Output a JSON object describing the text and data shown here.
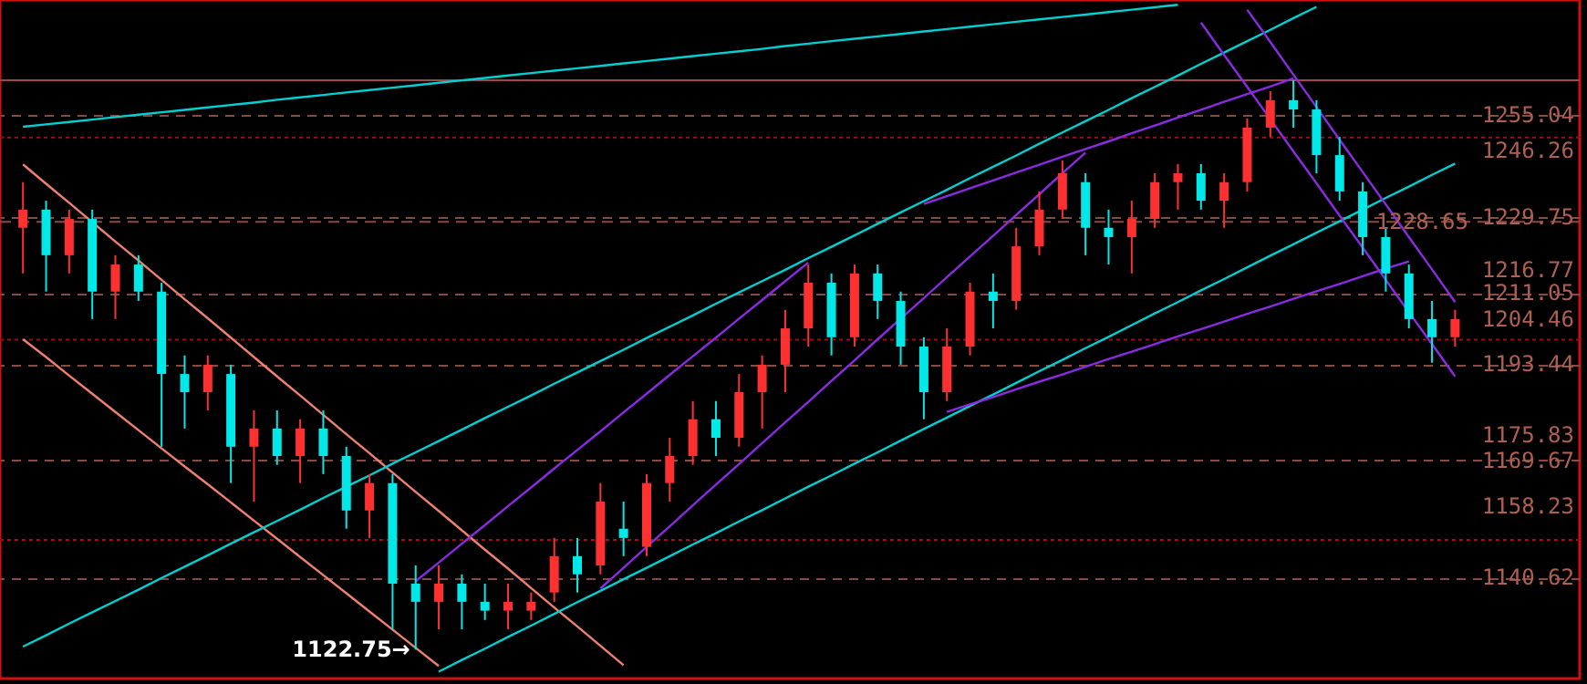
{
  "chart_data": {
    "type": "candlestick",
    "categories": [
      null,
      null,
      null,
      null,
      null,
      null,
      null,
      null,
      null,
      null,
      null,
      null,
      null,
      null,
      null,
      null,
      null,
      null,
      null,
      null,
      null,
      null,
      null,
      null,
      null,
      null,
      null,
      null,
      null,
      null,
      null,
      null,
      null,
      null,
      null,
      null,
      null,
      null,
      null,
      null,
      null,
      null,
      null,
      null,
      null,
      null,
      null,
      null,
      null,
      null,
      null,
      null,
      null,
      null,
      null,
      null,
      null,
      null,
      null,
      null,
      null,
      null,
      null
    ],
    "ohlc": [
      [
        1227.2,
        1238.5,
        1215.9,
        1231.7
      ],
      [
        1231.7,
        1233.9,
        1211.4,
        1220.4
      ],
      [
        1220.4,
        1231.7,
        1215.9,
        1229.4
      ],
      [
        1229.4,
        1231.7,
        1204.6,
        1211.4
      ],
      [
        1211.4,
        1220.4,
        1204.6,
        1218.1
      ],
      [
        1218.1,
        1220.4,
        1209.1,
        1211.4
      ],
      [
        1211.4,
        1213.6,
        1173.0,
        1191.0
      ],
      [
        1191.0,
        1195.6,
        1177.5,
        1186.5
      ],
      [
        1186.5,
        1195.6,
        1182.0,
        1193.3
      ],
      [
        1191.0,
        1193.3,
        1164.0,
        1173.0
      ],
      [
        1173.0,
        1182.0,
        1159.4,
        1177.5
      ],
      [
        1177.5,
        1182.0,
        1168.5,
        1170.7
      ],
      [
        1170.7,
        1179.8,
        1164.0,
        1177.5
      ],
      [
        1177.5,
        1182.0,
        1166.2,
        1170.7
      ],
      [
        1170.7,
        1173.0,
        1152.7,
        1157.2
      ],
      [
        1157.2,
        1166.2,
        1150.4,
        1164.0
      ],
      [
        1164.0,
        1166.2,
        1127.8,
        1139.1
      ],
      [
        1139.1,
        1143.6,
        1122.75,
        1134.6
      ],
      [
        1134.6,
        1143.6,
        1127.8,
        1139.1
      ],
      [
        1139.1,
        1141.4,
        1127.8,
        1134.6
      ],
      [
        1134.6,
        1139.1,
        1130.1,
        1132.4
      ],
      [
        1132.4,
        1139.1,
        1127.8,
        1134.6
      ],
      [
        1132.4,
        1136.9,
        1130.1,
        1134.6
      ],
      [
        1136.9,
        1150.4,
        1134.6,
        1145.9
      ],
      [
        1145.9,
        1150.4,
        1136.9,
        1141.4
      ],
      [
        1143.6,
        1164.0,
        1141.4,
        1159.4
      ],
      [
        1152.7,
        1159.4,
        1145.9,
        1150.4
      ],
      [
        1148.2,
        1166.2,
        1145.9,
        1164.0
      ],
      [
        1164.0,
        1175.2,
        1159.4,
        1170.7
      ],
      [
        1170.7,
        1184.3,
        1168.5,
        1179.8
      ],
      [
        1179.8,
        1184.3,
        1170.7,
        1175.2
      ],
      [
        1175.2,
        1191.0,
        1173.0,
        1186.5
      ],
      [
        1186.5,
        1195.6,
        1177.5,
        1193.3
      ],
      [
        1193.3,
        1206.9,
        1186.5,
        1202.3
      ],
      [
        1202.3,
        1218.1,
        1197.8,
        1213.6
      ],
      [
        1213.6,
        1215.9,
        1195.6,
        1200.1
      ],
      [
        1200.1,
        1218.1,
        1197.8,
        1215.9
      ],
      [
        1215.9,
        1218.1,
        1204.6,
        1209.1
      ],
      [
        1209.1,
        1211.4,
        1193.3,
        1197.8
      ],
      [
        1197.8,
        1200.1,
        1179.8,
        1186.5
      ],
      [
        1186.5,
        1202.3,
        1184.3,
        1197.8
      ],
      [
        1197.8,
        1213.6,
        1195.6,
        1211.4
      ],
      [
        1211.4,
        1215.9,
        1202.3,
        1209.1
      ],
      [
        1209.1,
        1227.2,
        1206.9,
        1222.6
      ],
      [
        1222.6,
        1236.2,
        1220.4,
        1231.7
      ],
      [
        1231.7,
        1243.9,
        1229.4,
        1240.7
      ],
      [
        1238.5,
        1240.7,
        1220.4,
        1227.2
      ],
      [
        1227.2,
        1231.7,
        1218.1,
        1224.9
      ],
      [
        1224.9,
        1233.9,
        1215.9,
        1229.4
      ],
      [
        1229.4,
        1240.7,
        1227.2,
        1238.5
      ],
      [
        1238.5,
        1243.0,
        1231.7,
        1240.7
      ],
      [
        1240.7,
        1243.0,
        1231.7,
        1233.9
      ],
      [
        1233.9,
        1240.7,
        1227.2,
        1238.5
      ],
      [
        1238.5,
        1254.3,
        1236.2,
        1252.0
      ],
      [
        1252.0,
        1261.0,
        1249.7,
        1258.8
      ],
      [
        1258.8,
        1263.7,
        1252.0,
        1256.5
      ],
      [
        1256.5,
        1258.8,
        1240.7,
        1245.2
      ],
      [
        1245.2,
        1249.7,
        1233.9,
        1236.2
      ],
      [
        1236.2,
        1238.5,
        1220.4,
        1224.9
      ],
      [
        1224.9,
        1227.2,
        1211.4,
        1215.9
      ],
      [
        1215.9,
        1218.1,
        1202.3,
        1204.6
      ],
      [
        1204.6,
        1209.1,
        1193.8,
        1200.1
      ],
      [
        1200.1,
        1206.9,
        1197.8,
        1204.6
      ]
    ],
    "colors": [
      "#ff3030",
      "#00e8e8",
      "#ff3030",
      "#00e8e8",
      "#ff3030",
      "#00e8e8",
      "#00e8e8",
      "#00e8e8",
      "#ff3030",
      "#00e8e8",
      "#ff3030",
      "#00e8e8",
      "#ff3030",
      "#00e8e8",
      "#00e8e8",
      "#ff3030",
      "#00e8e8",
      "#00e8e8",
      "#ff3030",
      "#00e8e8",
      "#00e8e8",
      "#ff3030",
      "#ff3030",
      "#ff3030",
      "#00e8e8",
      "#ff3030",
      "#00e8e8",
      "#ff3030",
      "#ff3030",
      "#ff3030",
      "#00e8e8",
      "#ff3030",
      "#ff3030",
      "#ff3030",
      "#ff3030",
      "#00e8e8",
      "#ff3030",
      "#00e8e8",
      "#00e8e8",
      "#00e8e8",
      "#ff3030",
      "#ff3030",
      "#00e8e8",
      "#ff3030",
      "#ff3030",
      "#ff3030",
      "#00e8e8",
      "#00e8e8",
      "#ff3030",
      "#ff3030",
      "#ff3030",
      "#00e8e8",
      "#ff3030",
      "#ff3030",
      "#ff3030",
      "#00e8e8",
      "#00e8e8",
      "#00e8e8",
      "#00e8e8",
      "#00e8e8",
      "#00e8e8",
      "#00e8e8",
      "#ff3030"
    ],
    "series": [
      {
        "type": "line",
        "color": "#00d0d0",
        "values": [
          1252.2,
          1252.8,
          1253.4,
          1254.0,
          1254.6,
          1255.2,
          1255.8,
          1256.4,
          1257.0,
          1257.6,
          1258.2,
          1258.9,
          1259.5,
          1260.1,
          1260.7,
          1261.3,
          1261.9,
          1262.5,
          1263.1,
          1263.7,
          1264.3,
          1264.9,
          1265.5,
          1266.1,
          1266.7,
          1267.3,
          1267.9,
          1268.5,
          1269.1,
          1269.7,
          1270.3,
          1270.9,
          1271.5,
          1272.2,
          1272.8,
          1273.4,
          1274.0,
          1274.6,
          1275.2,
          1275.8,
          1276.4,
          1277.0,
          1277.6,
          1278.2,
          1278.8,
          1279.4,
          1280.0,
          1280.6,
          1281.2,
          1281.8,
          1282.4,
          null,
          null,
          null,
          null,
          null,
          null,
          null,
          null,
          null,
          null,
          null,
          null
        ]
      },
      {
        "type": "line",
        "color": "#f08070",
        "values": [
          1242.9,
          1238.1,
          1233.4,
          1228.6,
          1223.8,
          1219.1,
          1214.3,
          1209.5,
          1204.8,
          1200.0,
          1195.2,
          1190.4,
          1185.7,
          1180.9,
          1176.1,
          1171.4,
          1166.6,
          1161.8,
          1157.1,
          1152.3,
          1147.5,
          1142.8,
          1138.0,
          1133.2,
          1128.5,
          1123.7,
          1118.9,
          null,
          null,
          null,
          null,
          null,
          null,
          null,
          null,
          null,
          null,
          null,
          null,
          null,
          null,
          null,
          null,
          null,
          null,
          null,
          null,
          null,
          null,
          null,
          null,
          null,
          null,
          null,
          null,
          null,
          null,
          null,
          null,
          null,
          null,
          null,
          null
        ]
      },
      {
        "type": "line",
        "color": "#f08070",
        "values": [
          1199.6,
          1195.2,
          1190.6,
          1186.1,
          1181.6,
          1177.1,
          1172.6,
          1168.1,
          1163.7,
          1159.2,
          1154.7,
          1150.2,
          1145.7,
          1141.2,
          1136.7,
          1132.2,
          1127.7,
          1123.2,
          1118.7,
          null,
          null,
          null,
          null,
          null,
          null,
          null,
          null,
          null,
          null,
          null,
          null,
          null,
          null,
          null,
          null,
          null,
          null,
          null,
          null,
          null,
          null,
          null,
          null,
          null,
          null,
          null,
          null,
          null,
          null,
          null,
          null,
          null,
          null,
          null,
          null,
          null,
          null,
          null,
          null,
          null,
          null,
          null,
          null
        ]
      },
      {
        "type": "line",
        "color": "#00d0d0",
        "values": [
          1123.5,
          1126.3,
          1129.2,
          1132.0,
          1134.8,
          1137.6,
          1140.5,
          1143.3,
          1146.1,
          1149.0,
          1151.8,
          1154.6,
          1157.4,
          1160.3,
          1163.1,
          1165.9,
          1168.8,
          1171.6,
          1174.4,
          1177.2,
          1180.1,
          1182.9,
          1185.7,
          1188.6,
          1191.4,
          1194.2,
          1197.0,
          1199.9,
          1202.7,
          1205.5,
          1208.4,
          1211.2,
          1214.0,
          1216.8,
          1219.7,
          1222.5,
          1225.3,
          1228.2,
          1231.0,
          1233.8,
          1236.6,
          1239.5,
          1242.3,
          1245.1,
          1248.0,
          1250.8,
          1253.6,
          1256.4,
          1259.3,
          1262.1,
          1264.9,
          1267.8,
          1270.6,
          1273.4,
          1276.2,
          1279.1,
          1281.9,
          null,
          null,
          null,
          null,
          null,
          null
        ]
      },
      {
        "type": "line",
        "color": "#00d0d0",
        "values": [
          null,
          null,
          null,
          null,
          null,
          null,
          null,
          null,
          null,
          null,
          null,
          null,
          null,
          null,
          null,
          null,
          null,
          null,
          1117.3,
          1120.2,
          1123.0,
          1125.9,
          1128.7,
          1131.6,
          1134.5,
          1137.3,
          1140.2,
          1143.0,
          1145.9,
          1148.8,
          1151.6,
          1154.5,
          1157.3,
          1160.2,
          1163.1,
          1165.9,
          1168.8,
          1171.6,
          1174.5,
          1177.4,
          1180.2,
          1183.1,
          1185.9,
          1188.8,
          1191.7,
          1194.5,
          1197.4,
          1200.2,
          1203.1,
          1206.0,
          1208.8,
          1211.7,
          1214.5,
          1217.4,
          1220.3,
          1223.1,
          1226.0,
          1228.8,
          1231.7,
          1234.6,
          1237.4,
          1240.3,
          1243.1
        ]
      },
      {
        "type": "line",
        "color": "#8a2be2",
        "values": [
          null,
          null,
          null,
          null,
          null,
          null,
          null,
          null,
          null,
          null,
          null,
          null,
          null,
          null,
          null,
          null,
          null,
          1139.7,
          1144.3,
          1149.0,
          1153.6,
          1158.3,
          1162.9,
          1167.6,
          1172.2,
          1176.8,
          1181.5,
          1186.1,
          1190.8,
          1195.4,
          1200.0,
          1204.7,
          1209.3,
          1214.0,
          1218.6,
          null,
          null,
          null,
          null,
          null,
          null,
          null,
          null,
          null,
          null,
          null,
          null,
          null,
          null,
          null,
          null,
          null,
          null,
          null,
          null,
          null,
          null,
          null,
          null,
          null,
          null,
          null,
          null
        ]
      },
      {
        "type": "line",
        "color": "#8a2be2",
        "values": [
          null,
          null,
          null,
          null,
          null,
          null,
          null,
          null,
          null,
          null,
          null,
          null,
          null,
          null,
          null,
          null,
          null,
          null,
          null,
          null,
          null,
          null,
          null,
          null,
          null,
          1137.9,
          1143.0,
          1148.2,
          1153.3,
          1158.5,
          1163.6,
          1168.7,
          1173.9,
          1179.0,
          1184.1,
          1189.3,
          1194.4,
          1199.6,
          1204.7,
          1209.8,
          1215.0,
          1220.1,
          1225.2,
          1230.4,
          1235.5,
          1240.7,
          1245.8,
          null,
          null,
          null,
          null,
          null,
          null,
          null,
          null,
          null,
          null,
          null,
          null,
          null,
          null,
          null,
          null
        ]
      },
      {
        "type": "line",
        "color": "#8a2be2",
        "values": [
          null,
          null,
          null,
          null,
          null,
          null,
          null,
          null,
          null,
          null,
          null,
          null,
          null,
          null,
          null,
          null,
          null,
          null,
          null,
          null,
          null,
          null,
          null,
          null,
          null,
          null,
          null,
          null,
          null,
          null,
          null,
          null,
          null,
          null,
          null,
          null,
          null,
          null,
          null,
          1233.1,
          1235.0,
          1237.0,
          1238.9,
          1240.9,
          1242.8,
          1244.8,
          1246.7,
          1248.6,
          1250.6,
          1252.5,
          1254.5,
          1256.4,
          1258.4,
          1260.3,
          1262.2,
          1264.2,
          null,
          null,
          null,
          null,
          null,
          null,
          null
        ]
      },
      {
        "type": "line",
        "color": "#8a2be2",
        "values": [
          null,
          null,
          null,
          null,
          null,
          null,
          null,
          null,
          null,
          null,
          null,
          null,
          null,
          null,
          null,
          null,
          null,
          null,
          null,
          null,
          null,
          null,
          null,
          null,
          null,
          null,
          null,
          null,
          null,
          null,
          null,
          null,
          null,
          null,
          null,
          null,
          null,
          null,
          null,
          null,
          1181.6,
          1183.5,
          1185.3,
          1187.2,
          1189.1,
          1190.9,
          1192.8,
          1194.7,
          1196.5,
          1198.4,
          1200.3,
          1202.1,
          1204.0,
          1205.9,
          1207.7,
          1209.6,
          1211.5,
          1213.3,
          1215.2,
          1217.1,
          1218.9,
          null,
          null
        ]
      },
      {
        "type": "line",
        "color": "#8a2be2",
        "values": [
          null,
          null,
          null,
          null,
          null,
          null,
          null,
          null,
          null,
          null,
          null,
          null,
          null,
          null,
          null,
          null,
          null,
          null,
          null,
          null,
          null,
          null,
          null,
          null,
          null,
          null,
          null,
          null,
          null,
          null,
          null,
          null,
          null,
          null,
          null,
          null,
          null,
          null,
          null,
          null,
          null,
          null,
          null,
          null,
          null,
          null,
          null,
          null,
          null,
          null,
          null,
          null,
          null,
          1281.2,
          1273.2,
          1265.1,
          1257.1,
          1249.0,
          1241.0,
          1233.0,
          1224.9,
          1216.9,
          1208.8
        ]
      },
      {
        "type": "line",
        "color": "#8a2be2",
        "values": [
          null,
          null,
          null,
          null,
          null,
          null,
          null,
          null,
          null,
          null,
          null,
          null,
          null,
          null,
          null,
          null,
          null,
          null,
          null,
          null,
          null,
          null,
          null,
          null,
          null,
          null,
          null,
          null,
          null,
          null,
          null,
          null,
          null,
          null,
          null,
          null,
          null,
          null,
          null,
          null,
          null,
          null,
          null,
          null,
          null,
          null,
          null,
          null,
          null,
          null,
          null,
          1278.0,
          1270.0,
          1262.1,
          1254.1,
          1246.1,
          1238.2,
          1230.2,
          1222.3,
          1214.3,
          1206.3,
          1198.4,
          1190.4
        ]
      }
    ],
    "ylim": [
      1115.6,
      1283.6
    ],
    "yticks": [
      1255.04,
      1246.26,
      1229.75,
      1216.77,
      1211.05,
      1204.46,
      1193.44,
      1175.83,
      1169.67,
      1158.23,
      1140.62
    ],
    "grid": "y",
    "tick_labels": "y",
    "ref_lines": [
      {
        "axis": "y",
        "value": 1228.65,
        "label": "1228.65",
        "color": "#8a4a40",
        "line_style": "dashed"
      },
      {
        "axis": "y",
        "value": 1263.75,
        "color": "#a04848",
        "line_style": "solid"
      },
      {
        "axis": "y",
        "value": 1249.58,
        "color": "#a01010",
        "line_style": "dotted"
      },
      {
        "axis": "y",
        "value": 1199.51,
        "color": "#a01010",
        "line_style": "dotted"
      },
      {
        "axis": "y",
        "value": 1149.9,
        "color": "#a01010",
        "line_style": "dotted"
      }
    ],
    "annotations": [
      "1122.75→"
    ]
  }
}
